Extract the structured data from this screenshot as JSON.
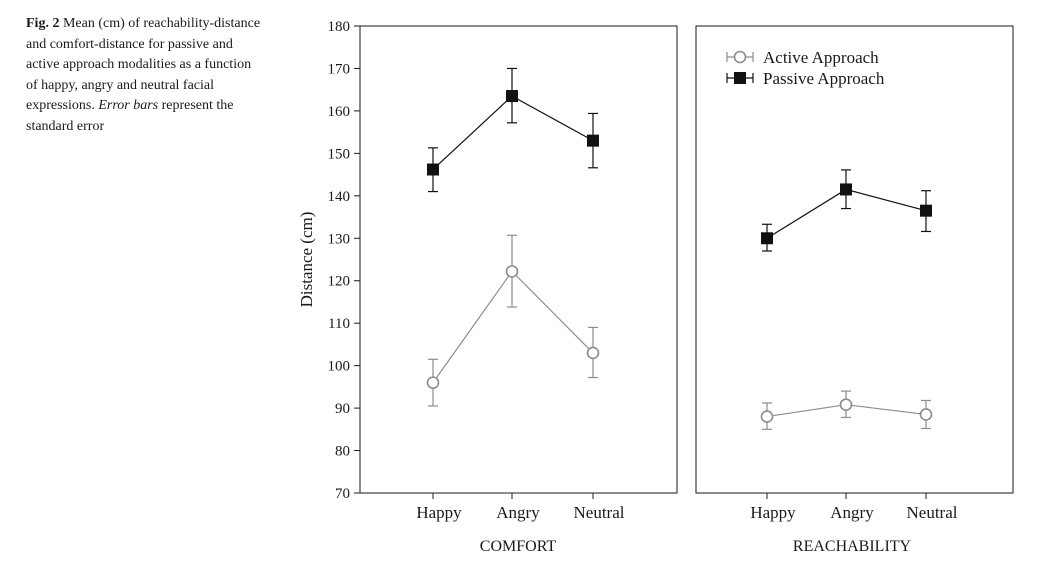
{
  "caption": {
    "label": "Fig. 2",
    "text_part1": "Mean (cm) of reachability-distance and comfort-distance for passive and active approach modalities as a function of happy, angry and neutral facial expressions.",
    "italic": "Error bars",
    "text_part2": "represent the standard error"
  },
  "chart_data": [
    {
      "type": "line",
      "panel_label": "COMFORT",
      "categories": [
        "Happy",
        "Angry",
        "Neutral"
      ],
      "ylabel": "Distance (cm)",
      "ylim": [
        70,
        180
      ],
      "yticks": [
        70,
        80,
        90,
        100,
        110,
        120,
        130,
        140,
        150,
        160,
        170,
        180
      ],
      "series": [
        {
          "name": "Active Approach",
          "marker": "open-circle",
          "color": "#8c8c8c",
          "values": [
            96,
            122.2,
            103
          ],
          "err_low": [
            90.5,
            113.8,
            97.2
          ],
          "err_high": [
            101.5,
            130.7,
            109
          ]
        },
        {
          "name": "Passive Approach",
          "marker": "filled-square",
          "color": "#111111",
          "values": [
            146.2,
            163.5,
            153
          ],
          "err_low": [
            141,
            157.2,
            146.6
          ],
          "err_high": [
            151.3,
            170,
            159.4
          ]
        }
      ],
      "legend": false
    },
    {
      "type": "line",
      "panel_label": "REACHABILITY",
      "categories": [
        "Happy",
        "Angry",
        "Neutral"
      ],
      "ylim": [
        70,
        180
      ],
      "series": [
        {
          "name": "Active Approach",
          "marker": "open-circle",
          "color": "#8c8c8c",
          "values": [
            88,
            90.8,
            88.5
          ],
          "err_low": [
            85,
            87.8,
            85.2
          ],
          "err_high": [
            91.2,
            94,
            91.8
          ]
        },
        {
          "name": "Passive Approach",
          "marker": "filled-square",
          "color": "#111111",
          "values": [
            130,
            141.5,
            136.5
          ],
          "err_low": [
            127,
            137,
            131.6
          ],
          "err_high": [
            133.3,
            146.1,
            141.2
          ]
        }
      ],
      "legend": true,
      "legend_position": "top-left"
    }
  ]
}
